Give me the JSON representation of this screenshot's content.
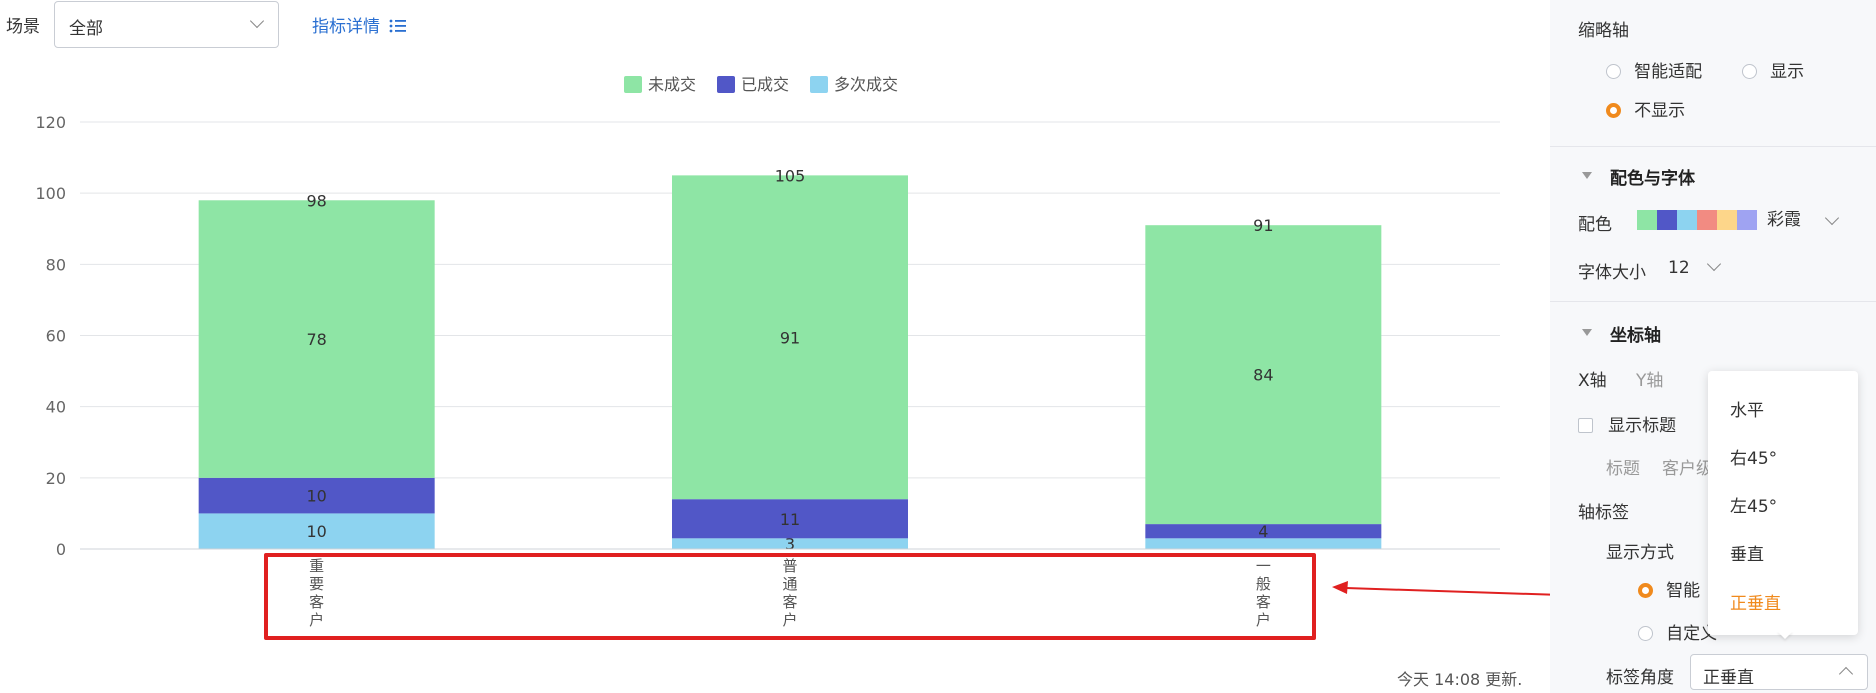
{
  "filter": {
    "scene_label": "场景",
    "scene_value": "全部",
    "indicator_link": "指标详情",
    "list_icon": "list-icon"
  },
  "chart_data": {
    "type": "bar",
    "stacked": true,
    "categories": [
      "重要客户",
      "普通客户",
      "一般客户"
    ],
    "series": [
      {
        "name": "多次成交",
        "values": [
          10,
          3,
          3
        ],
        "color": "#8dd3f0"
      },
      {
        "name": "已成交",
        "values": [
          10,
          11,
          4
        ],
        "color": "#5157c7"
      },
      {
        "name": "未成交",
        "values": [
          78,
          91,
          84
        ],
        "color": "#8ee5a5"
      }
    ],
    "totals": [
      98,
      105,
      91
    ],
    "data_labels": [
      [
        "10",
        "10",
        "78",
        "98"
      ],
      [
        "3",
        "11",
        "91",
        "105"
      ],
      [
        "",
        "4",
        "84",
        "91"
      ]
    ],
    "legend": [
      "未成交",
      "已成交",
      "多次成交"
    ],
    "legend_placement": "top-center",
    "ylim": [
      0,
      120
    ],
    "yticks": [
      "0",
      "20",
      "40",
      "60",
      "80",
      "100",
      "120"
    ],
    "grid": true,
    "x_label_rotation": "vertical-upright"
  },
  "footer": {
    "updated": "今天 14:08 更新."
  },
  "panel": {
    "thumbnail_axis": {
      "title": "缩略轴",
      "options": [
        "智能适配",
        "显示",
        "不显示"
      ],
      "selected": "不显示"
    },
    "color_font": {
      "title": "配色与字体",
      "palette_label": "配色",
      "palette_colors": [
        "#8ee5a5",
        "#5157c7",
        "#8dd3f0",
        "#f28b82",
        "#fdd68a",
        "#9fa3f2"
      ],
      "palette_name": "彩霞",
      "font_size_label": "字体大小",
      "font_size_value": "12"
    },
    "axis": {
      "title": "坐标轴",
      "tab_x": "X轴",
      "tab_y": "Y轴",
      "show_title_label": "显示标题",
      "title_field_label": "标题",
      "title_field_value": "客户级",
      "axis_label_title": "轴标签",
      "display_mode_label": "显示方式",
      "mode_options": [
        "智能",
        "自定义"
      ],
      "mode_options_visible": [
        "智能",
        "自定义"
      ],
      "label_angle_label": "标签角度",
      "label_angle_value": "正垂直"
    },
    "angle_dropdown": {
      "options": [
        "水平",
        "右45°",
        "左45°",
        "垂直",
        "正垂直"
      ],
      "selected": "正垂直"
    }
  },
  "annotation": {
    "highlight_color": "#e02020"
  }
}
